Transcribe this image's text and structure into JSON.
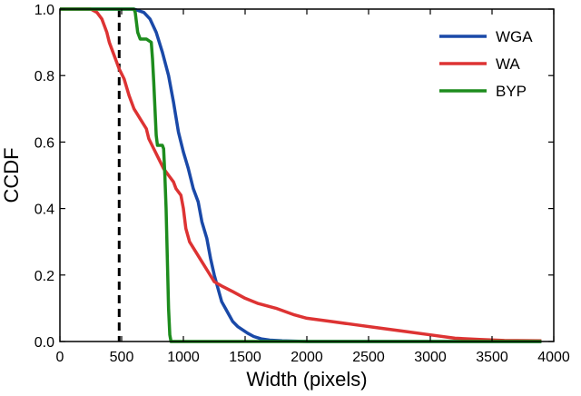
{
  "chart_data": {
    "type": "line",
    "title": "",
    "xlabel": "Width (pixels)",
    "ylabel": "CCDF",
    "xlim": [
      0,
      4000
    ],
    "ylim": [
      0.0,
      1.0
    ],
    "x_ticks": [
      0,
      500,
      1000,
      1500,
      2000,
      2500,
      3000,
      3500,
      4000
    ],
    "y_ticks": [
      0.0,
      0.2,
      0.4,
      0.6,
      0.8,
      1.0
    ],
    "x_tick_labels": [
      "0",
      "500",
      "1000",
      "1500",
      "2000",
      "2500",
      "3000",
      "3500",
      "4000"
    ],
    "y_tick_labels": [
      "0.0",
      "0.2",
      "0.4",
      "0.6",
      "0.8",
      "1.0"
    ],
    "grid": false,
    "legend_position": "top-right",
    "reference_line": {
      "x": 480,
      "style": "dashed",
      "color": "#000000"
    },
    "series": [
      {
        "name": "WGA",
        "color": "#1a49a8",
        "points": [
          [
            0,
            1.0
          ],
          [
            600,
            1.0
          ],
          [
            680,
            0.99
          ],
          [
            730,
            0.97
          ],
          [
            780,
            0.93
          ],
          [
            830,
            0.87
          ],
          [
            880,
            0.8
          ],
          [
            920,
            0.72
          ],
          [
            960,
            0.63
          ],
          [
            1000,
            0.57
          ],
          [
            1040,
            0.52
          ],
          [
            1080,
            0.46
          ],
          [
            1120,
            0.42
          ],
          [
            1150,
            0.36
          ],
          [
            1190,
            0.31
          ],
          [
            1220,
            0.25
          ],
          [
            1250,
            0.2
          ],
          [
            1280,
            0.16
          ],
          [
            1310,
            0.12
          ],
          [
            1340,
            0.1
          ],
          [
            1370,
            0.08
          ],
          [
            1400,
            0.06
          ],
          [
            1440,
            0.045
          ],
          [
            1480,
            0.035
          ],
          [
            1520,
            0.025
          ],
          [
            1570,
            0.015
          ],
          [
            1630,
            0.008
          ],
          [
            1700,
            0.004
          ],
          [
            1800,
            0.002
          ],
          [
            2000,
            0.0
          ],
          [
            3900,
            0.0
          ]
        ]
      },
      {
        "name": "WA",
        "color": "#dd3333",
        "points": [
          [
            0,
            1.0
          ],
          [
            250,
            1.0
          ],
          [
            300,
            0.99
          ],
          [
            340,
            0.97
          ],
          [
            360,
            0.95
          ],
          [
            380,
            0.93
          ],
          [
            400,
            0.9
          ],
          [
            430,
            0.87
          ],
          [
            460,
            0.84
          ],
          [
            480,
            0.82
          ],
          [
            520,
            0.79
          ],
          [
            560,
            0.74
          ],
          [
            600,
            0.7
          ],
          [
            650,
            0.67
          ],
          [
            700,
            0.64
          ],
          [
            720,
            0.61
          ],
          [
            760,
            0.58
          ],
          [
            800,
            0.55
          ],
          [
            840,
            0.52
          ],
          [
            880,
            0.5
          ],
          [
            920,
            0.48
          ],
          [
            940,
            0.46
          ],
          [
            980,
            0.44
          ],
          [
            1000,
            0.4
          ],
          [
            1020,
            0.34
          ],
          [
            1050,
            0.3
          ],
          [
            1100,
            0.27
          ],
          [
            1150,
            0.24
          ],
          [
            1200,
            0.21
          ],
          [
            1250,
            0.18
          ],
          [
            1320,
            0.165
          ],
          [
            1400,
            0.15
          ],
          [
            1500,
            0.13
          ],
          [
            1600,
            0.115
          ],
          [
            1750,
            0.1
          ],
          [
            1900,
            0.08
          ],
          [
            2000,
            0.07
          ],
          [
            2200,
            0.06
          ],
          [
            2400,
            0.05
          ],
          [
            2600,
            0.04
          ],
          [
            2800,
            0.03
          ],
          [
            3000,
            0.02
          ],
          [
            3200,
            0.01
          ],
          [
            3400,
            0.006
          ],
          [
            3600,
            0.003
          ],
          [
            3900,
            0.002
          ]
        ]
      },
      {
        "name": "BYP",
        "color": "#1d8c1d",
        "points": [
          [
            0,
            1.0
          ],
          [
            600,
            1.0
          ],
          [
            610,
            0.99
          ],
          [
            620,
            0.96
          ],
          [
            630,
            0.93
          ],
          [
            650,
            0.91
          ],
          [
            700,
            0.91
          ],
          [
            720,
            0.905
          ],
          [
            740,
            0.9
          ],
          [
            750,
            0.85
          ],
          [
            760,
            0.78
          ],
          [
            770,
            0.7
          ],
          [
            780,
            0.62
          ],
          [
            790,
            0.59
          ],
          [
            830,
            0.59
          ],
          [
            840,
            0.58
          ],
          [
            850,
            0.5
          ],
          [
            860,
            0.4
          ],
          [
            870,
            0.25
          ],
          [
            880,
            0.1
          ],
          [
            890,
            0.02
          ],
          [
            900,
            0.0
          ],
          [
            3900,
            0.0
          ]
        ]
      }
    ]
  }
}
